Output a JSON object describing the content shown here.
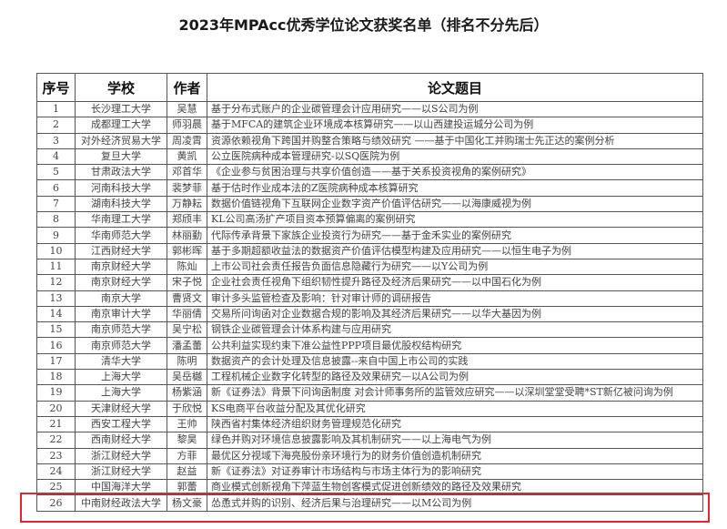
{
  "title": "2023年MPAcc优秀学位论文获奖名单（排名不分先后）",
  "table": {
    "headers": [
      "序号",
      "学校",
      "作者",
      "论文题目"
    ],
    "rows": [
      [
        "1",
        "长沙理工大学",
        "吴慧",
        "基于分布式账户的企业碳管理会计应用研究——以S公司为例"
      ],
      [
        "2",
        "成都理工大学",
        "师羽晨",
        "基于MFCA的建筑企业环境成本核算研究——以山西建投运城分公司为例"
      ],
      [
        "3",
        "对外经济贸易大学",
        "周凌霄",
        "资源依赖视角下跨国并购整合策略与绩效研究 ——基于中国化工并购瑞士先正达的案例分析"
      ],
      [
        "4",
        "复旦大学",
        "黄凯",
        "公立医院病种成本管理研究-以SQ医院为例"
      ],
      [
        "5",
        "甘肃政法大学",
        "邓首华",
        "《企业参与贫困治理与共享价值创造——基于关系投资视角的案例研究》"
      ],
      [
        "6",
        "河南科技大学",
        "裴梦菲",
        "基于估时作业成本法的Z医院病种成本核算研究"
      ],
      [
        "7",
        "湖南科技大学",
        "万静耘",
        "数据价值链视角下互联网企业数字资产价值评估研究——以海康威视为例"
      ],
      [
        "8",
        "华南理工大学",
        "郑颀丰",
        "KL公司高汤扩产项目资本预算偏离的案例研究"
      ],
      [
        "9",
        "华南师范大学",
        "林丽勤",
        "代际传承背景下家族企业投资行为研究——基于金禾实业的案例研究"
      ],
      [
        "10",
        "江西财经大学",
        "郭彬晖",
        "基于多期超额收益法的数据资产价值评估模型构建及应用研究——以恒生电子为例"
      ],
      [
        "11",
        "南京财经大学",
        "陈灿",
        "上市公司社会责任报告负面信息隐藏行为研究——以Y公司为例"
      ],
      [
        "12",
        "南京财经大学",
        "宋子悦",
        "企业社会责任视角下组织韧性提升路径及经济后果研究——以中国石化为例"
      ],
      [
        "13",
        "南京大学",
        "曹贤文",
        "审计多头监管检查及影响：针对审计师的调研报告"
      ],
      [
        "14",
        "南京审计大学",
        "华丽倩",
        "交易所问询函对企业数据合规的影响及其经济后果研究——以华大基因为例"
      ],
      [
        "15",
        "南京师范大学",
        "吴宁松",
        "钢铁企业碳管理会计体系构建与应用研究"
      ],
      [
        "16",
        "南京师范大学",
        "潘孟蕾",
        "公共利益实现约束下准公益性PPP项目最优股权结构研究"
      ],
      [
        "17",
        "清华大学",
        "陈明",
        "数据资产的会计处理及信息披露--来自中国上市公司的实践"
      ],
      [
        "18",
        "上海大学",
        "吴岳樾",
        "工程机械企业数字化转型的路径及效果研究—以A公司为例"
      ],
      [
        "19",
        "上海大学",
        "杨紫涵",
        "新《证券法》背景下问询函制度 对会计师事务所的监管效应研究——以深圳堂堂受聘*ST新亿被问询为例"
      ],
      [
        "20",
        "天津财经大学",
        "于欣悦",
        "KS电商平台收益分配及其优化研究"
      ],
      [
        "21",
        "西安工程大学",
        "王帅",
        "陕西省村集体经济组织财务管理规范化研究"
      ],
      [
        "22",
        "西南财经大学",
        "黎昊",
        "绿色并购对环境信息披露影响及其机制研究——以上海电气为例"
      ],
      [
        "23",
        "浙江财经大学",
        "方菲",
        "最优区分视域下海亮股份亲环境行为的财务价值创造机制研究"
      ],
      [
        "24",
        "浙江财经大学",
        "赵益",
        "新《证券法》对证券审计市场结构与市场主体行为的影响研究"
      ],
      [
        "25",
        "中国海洋大学",
        "郭蕾",
        "商业模式创新视角下萍蓝生物创客模式促进创新绩效的路径及效果研究"
      ],
      [
        "26",
        "中南财经政法大学",
        "杨文豪",
        "怂恿式并购的识别、经济后果与治理研究——以M公司为例"
      ]
    ]
  },
  "highlight": {
    "row": "26",
    "color": "#e0282c"
  }
}
